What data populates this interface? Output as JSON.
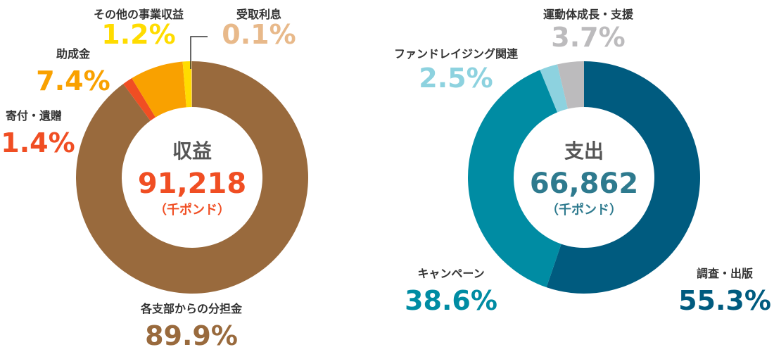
{
  "chart_data": [
    {
      "type": "pie",
      "center": {
        "title": "収益",
        "value": "91,218",
        "unit": "（千ポンド）",
        "value_color": "#f04e23",
        "unit_color": "#f04e23"
      },
      "slices": [
        {
          "name": "各支部からの分担金",
          "value": 89.9,
          "pct_label": "89.9%",
          "color": "#996a3d"
        },
        {
          "name": "寄付・遺贈",
          "value": 1.4,
          "pct_label": "1.4%",
          "color": "#f04e23"
        },
        {
          "name": "助成金",
          "value": 7.4,
          "pct_label": "7.4%",
          "color": "#f9a100"
        },
        {
          "name": "その他の事業収益",
          "value": 1.2,
          "pct_label": "1.2%",
          "color": "#ffdc00"
        },
        {
          "name": "受取利息",
          "value": 0.1,
          "pct_label": "0.1%",
          "color": "#e8b98a"
        }
      ]
    },
    {
      "type": "pie",
      "center": {
        "title": "支出",
        "value": "66,862",
        "unit": "（千ポンド）",
        "value_color": "#2e7a8e",
        "unit_color": "#2e7a8e"
      },
      "slices": [
        {
          "name": "調査・出版",
          "value": 55.3,
          "pct_label": "55.3%",
          "color": "#005b7f"
        },
        {
          "name": "キャンペーン",
          "value": 38.6,
          "pct_label": "38.6%",
          "color": "#008ca3"
        },
        {
          "name": "ファンドレイジング関連",
          "value": 2.5,
          "pct_label": "2.5%",
          "color": "#8dd2df"
        },
        {
          "name": "運動体成長・支援",
          "value": 3.7,
          "pct_label": "3.7%",
          "color": "#bcbbbd"
        }
      ]
    }
  ]
}
